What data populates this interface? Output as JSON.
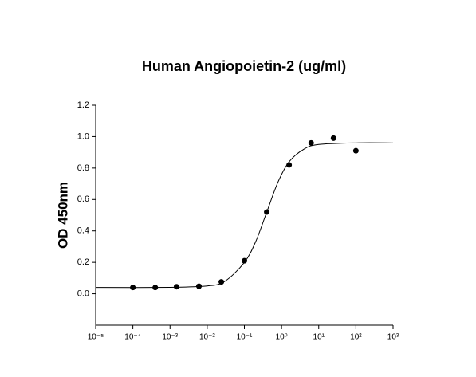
{
  "chart_data": {
    "type": "scatter",
    "title": "Human Angiopoietin-2 (ug/ml)",
    "y_label": "OD 450nm",
    "x_log": true,
    "xlim": [
      1e-05,
      1000
    ],
    "xticks": [
      {
        "value": 1e-05,
        "label": "10⁻⁵"
      },
      {
        "value": 0.0001,
        "label": "10⁻⁴"
      },
      {
        "value": 0.001,
        "label": "10⁻³"
      },
      {
        "value": 0.01,
        "label": "10⁻²"
      },
      {
        "value": 0.1,
        "label": "10⁻¹"
      },
      {
        "value": 1,
        "label": "10⁰"
      },
      {
        "value": 10,
        "label": "10¹"
      },
      {
        "value": 100,
        "label": "10²"
      },
      {
        "value": 1000,
        "label": "10³"
      }
    ],
    "ylim": [
      -0.2,
      1.2
    ],
    "yticks": [
      {
        "value": 0,
        "label": "0.0"
      },
      0.2,
      0.4,
      0.6,
      0.8,
      {
        "value": 1,
        "label": "1.0"
      },
      1.2
    ],
    "series": [
      {
        "type": "scatter",
        "color": "#000000",
        "x": [
          0.0001,
          0.0004,
          0.0015,
          0.006,
          0.024,
          0.1,
          0.4,
          1.6,
          6.25,
          25,
          100
        ],
        "values": [
          0.04,
          0.04,
          0.045,
          0.048,
          0.076,
          0.21,
          0.52,
          0.82,
          0.96,
          0.99,
          0.91
        ]
      },
      {
        "type": "line",
        "color": "#000000",
        "x": [
          1e-05,
          0.001,
          0.01,
          0.03,
          0.1,
          0.2,
          0.4,
          0.8,
          1.6,
          4,
          10,
          100,
          1000
        ],
        "values": [
          0.04,
          0.041,
          0.05,
          0.08,
          0.2,
          0.33,
          0.52,
          0.71,
          0.84,
          0.92,
          0.95,
          0.96,
          0.96
        ]
      }
    ]
  }
}
